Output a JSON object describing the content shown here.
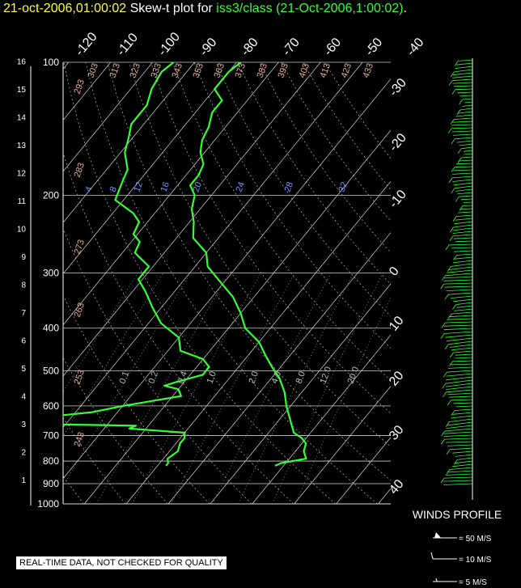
{
  "title": {
    "part1": "21-oct-2006,01:00:02",
    "part2": "Skew-t plot for",
    "part3": "iss3/class (21-Oct-2006,1:00:02)",
    "part4": "."
  },
  "notice": "REAL-TIME DATA, NOT CHECKED FOR QUALITY",
  "colors": {
    "trace": "#33ff33",
    "title_date": "#ffff33",
    "grid": "#cccccc",
    "theta": "#e8b090",
    "mixing": "#7799ff"
  },
  "chart_data": {
    "type": "line",
    "title": "",
    "pressure_ticks": [
      100,
      200,
      300,
      400,
      500,
      600,
      700,
      800,
      900,
      1000
    ],
    "height_ticks": [
      1,
      2,
      3,
      4,
      5,
      6,
      7,
      8,
      9,
      10,
      11,
      12,
      13,
      14,
      15,
      16
    ],
    "temp_top_labels": [
      "-120",
      "-110",
      "-100",
      "-90",
      "-80",
      "-70",
      "-60",
      "-50",
      "-40"
    ],
    "temp_right_labels": [
      {
        "t": -30,
        "label": "-30"
      },
      {
        "t": -20,
        "label": "-20"
      },
      {
        "t": -10,
        "label": "-10"
      },
      {
        "t": 0,
        "label": "0"
      },
      {
        "t": 10,
        "label": "10"
      },
      {
        "t": 20,
        "label": "20"
      },
      {
        "t": 30,
        "label": "30"
      },
      {
        "t": 40,
        "label": "40"
      }
    ],
    "theta_labels": [
      "243",
      "253",
      "263",
      "273",
      "283",
      "293",
      "303",
      "313",
      "323",
      "333",
      "343",
      "353",
      "363",
      "373",
      "383",
      "393",
      "403",
      "413",
      "423",
      "433"
    ],
    "mixing_labels_top": [
      "4",
      "8",
      "12",
      "16",
      "20",
      "24",
      "28",
      "32"
    ],
    "mixing_labels_low": [
      "0.1",
      "0.2",
      "0.4",
      "1.0",
      "2.0",
      "4.0",
      "8.0",
      "12.0",
      "20.0"
    ],
    "series": [
      {
        "role": "temperature",
        "points": [
          [
            820,
            18
          ],
          [
            808,
            19
          ],
          [
            790,
            24
          ],
          [
            760,
            22
          ],
          [
            730,
            21
          ],
          [
            710,
            19
          ],
          [
            690,
            16
          ],
          [
            650,
            13
          ],
          [
            600,
            9
          ],
          [
            560,
            6
          ],
          [
            520,
            2
          ],
          [
            490,
            -2
          ],
          [
            460,
            -6
          ],
          [
            430,
            -10
          ],
          [
            400,
            -16
          ],
          [
            370,
            -20
          ],
          [
            340,
            -25
          ],
          [
            310,
            -32
          ],
          [
            290,
            -37
          ],
          [
            270,
            -40
          ],
          [
            250,
            -46
          ],
          [
            230,
            -49
          ],
          [
            215,
            -52
          ],
          [
            200,
            -54
          ],
          [
            190,
            -57
          ],
          [
            180,
            -57
          ],
          [
            170,
            -58
          ],
          [
            160,
            -61
          ],
          [
            150,
            -63
          ],
          [
            140,
            -64
          ],
          [
            130,
            -66
          ],
          [
            122,
            -66
          ],
          [
            115,
            -70
          ],
          [
            110,
            -70
          ],
          [
            105,
            -70
          ],
          [
            100,
            -69
          ]
        ]
      },
      {
        "role": "dewpoint",
        "points": [
          [
            820,
            -8
          ],
          [
            808,
            -8
          ],
          [
            790,
            -9
          ],
          [
            760,
            -8
          ],
          [
            730,
            -9
          ],
          [
            710,
            -9
          ],
          [
            690,
            -10
          ],
          [
            675,
            -24
          ],
          [
            665,
            -23
          ],
          [
            660,
            -45
          ],
          [
            650,
            -48
          ],
          [
            640,
            -49
          ],
          [
            620,
            -36
          ],
          [
            600,
            -30
          ],
          [
            570,
            -18
          ],
          [
            550,
            -20
          ],
          [
            540,
            -24
          ],
          [
            530,
            -22
          ],
          [
            510,
            -17
          ],
          [
            490,
            -17
          ],
          [
            470,
            -20
          ],
          [
            450,
            -27
          ],
          [
            420,
            -30
          ],
          [
            390,
            -37
          ],
          [
            360,
            -42
          ],
          [
            330,
            -47
          ],
          [
            310,
            -51
          ],
          [
            290,
            -51
          ],
          [
            270,
            -57
          ],
          [
            255,
            -58
          ],
          [
            245,
            -61
          ],
          [
            230,
            -62
          ],
          [
            220,
            -65
          ],
          [
            205,
            -72
          ],
          [
            195,
            -73
          ],
          [
            185,
            -74
          ],
          [
            175,
            -75
          ],
          [
            160,
            -79
          ],
          [
            148,
            -81
          ],
          [
            138,
            -83
          ],
          [
            125,
            -83
          ],
          [
            115,
            -85
          ],
          [
            105,
            -86
          ],
          [
            100,
            -85
          ]
        ]
      }
    ],
    "wind_label": "WINDS PROFILE",
    "wind_legend": [
      "= 50 M/S",
      "= 10 M/S",
      "= 5 M/S"
    ]
  }
}
